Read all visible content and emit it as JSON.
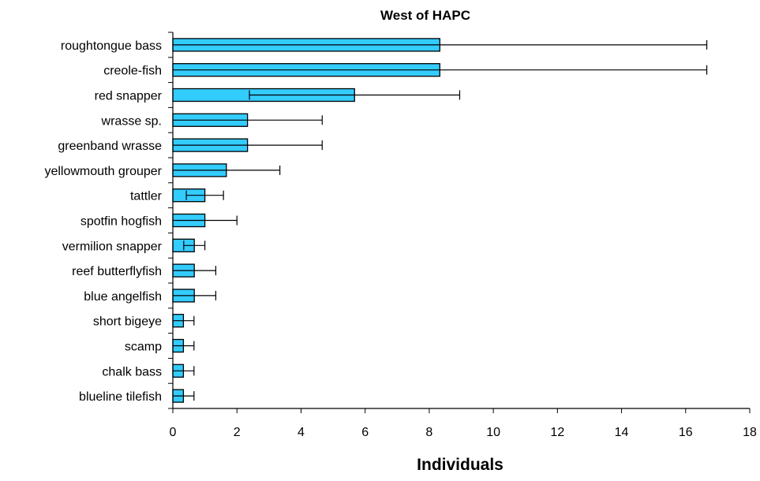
{
  "chart_data": {
    "type": "bar",
    "orientation": "horizontal",
    "title": "West of HAPC",
    "xlabel": "Individuals",
    "ylabel": "",
    "xlim": [
      0,
      18
    ],
    "xticks": [
      0,
      2,
      4,
      6,
      8,
      10,
      12,
      14,
      16,
      18
    ],
    "grid": false,
    "legend": "none",
    "bar_color": "#33ccff",
    "categories": [
      "roughtongue bass",
      "creole-fish",
      "red snapper",
      "wrasse sp.",
      "greenband wrasse",
      "yellowmouth grouper",
      "tattler",
      "spotfin hogfish",
      "vermilion snapper",
      "reef butterflyfish",
      "blue angelfish",
      "short bigeye",
      "scamp",
      "chalk bass",
      "blueline tilefish"
    ],
    "values": [
      8.33,
      8.33,
      5.67,
      2.33,
      2.33,
      1.67,
      1.0,
      1.0,
      0.67,
      0.67,
      0.67,
      0.33,
      0.33,
      0.33,
      0.33
    ],
    "errors": [
      8.33,
      8.33,
      3.28,
      2.33,
      2.33,
      1.67,
      0.58,
      1.0,
      0.33,
      0.67,
      0.67,
      0.33,
      0.33,
      0.33,
      0.33
    ]
  }
}
